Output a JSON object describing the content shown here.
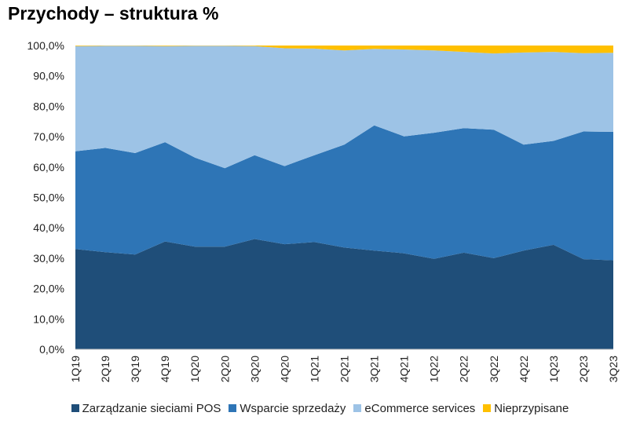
{
  "chart_data": {
    "type": "area",
    "stacked": true,
    "title": "Przychody – struktura %",
    "xlabel": "",
    "ylabel": "",
    "ylim": [
      0,
      100
    ],
    "yticks": [
      "0,0%",
      "10,0%",
      "20,0%",
      "30,0%",
      "40,0%",
      "50,0%",
      "60,0%",
      "70,0%",
      "80,0%",
      "90,0%",
      "100,0%"
    ],
    "categories": [
      "1Q19",
      "2Q19",
      "3Q19",
      "4Q19",
      "1Q20",
      "2Q20",
      "3Q20",
      "4Q20",
      "1Q21",
      "2Q21",
      "3Q21",
      "4Q21",
      "1Q22",
      "2Q22",
      "3Q22",
      "4Q22",
      "1Q23",
      "2Q23",
      "3Q23"
    ],
    "legend_position": "bottom",
    "series": [
      {
        "name": "Zarządzanie sieciami POS",
        "color": "#1f4e79",
        "values": [
          33.0,
          32.0,
          31.2,
          35.5,
          33.8,
          33.8,
          36.3,
          34.6,
          35.3,
          33.5,
          32.5,
          31.6,
          29.8,
          31.8,
          30.0,
          32.5,
          34.4,
          29.7,
          29.3
        ]
      },
      {
        "name": "Wsparcie sprzedaży",
        "color": "#2e75b6",
        "values": [
          32.2,
          34.3,
          33.4,
          32.7,
          29.3,
          25.8,
          27.6,
          25.7,
          28.6,
          33.9,
          41.2,
          38.5,
          41.5,
          41.0,
          42.3,
          34.9,
          34.2,
          42.0,
          42.3
        ]
      },
      {
        "name": "eCommerce services",
        "color": "#9dc3e6",
        "values": [
          34.6,
          33.6,
          35.3,
          31.6,
          36.8,
          40.3,
          35.9,
          38.8,
          35.1,
          31.0,
          25.2,
          28.6,
          27.1,
          25.1,
          25.1,
          30.3,
          29.3,
          25.8,
          26.0
        ]
      },
      {
        "name": "Nieprzypisane",
        "color": "#ffc000",
        "values": [
          0.2,
          0.1,
          0.1,
          0.2,
          0.1,
          0.1,
          0.2,
          0.9,
          1.0,
          1.6,
          1.1,
          1.3,
          1.6,
          2.1,
          2.6,
          2.3,
          2.1,
          2.5,
          2.4
        ]
      }
    ]
  }
}
